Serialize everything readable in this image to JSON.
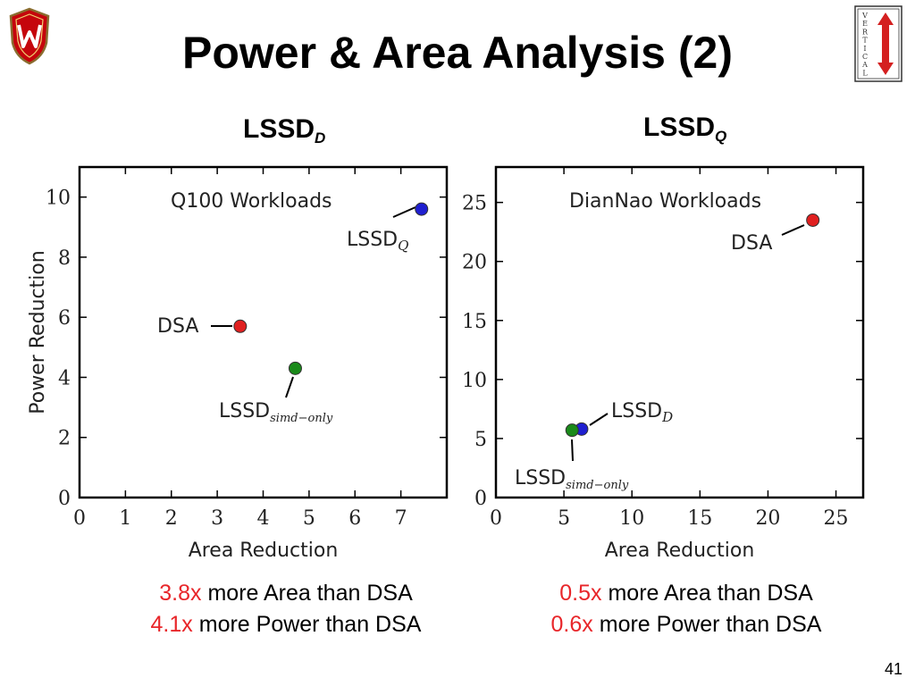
{
  "slide": {
    "title": "Power & Area Analysis (2)",
    "page_number": "41",
    "left_heading": {
      "main": "LSSD",
      "subscript": "D"
    },
    "right_heading": {
      "main": "LSSD",
      "subscript": "Q"
    },
    "left_comparison": [
      {
        "value": "3.8x",
        "text": " more Area than DSA"
      },
      {
        "value": "4.1x",
        "text": " more Power than DSA"
      }
    ],
    "right_comparison": [
      {
        "value": "0.5x",
        "text": " more Area than DSA"
      },
      {
        "value": "0.6x",
        "text": " more Power than DSA"
      }
    ],
    "logos": {
      "left": "uw-crest-logo",
      "right_letters": [
        "V",
        "E",
        "R",
        "T",
        "I",
        "C",
        "A",
        "L"
      ]
    },
    "accent_color": "#e8262a"
  },
  "chart_data": [
    {
      "type": "scatter",
      "title": "Q100 Workloads",
      "xlabel": "Area Reduction",
      "ylabel": "Power Reduction",
      "xlim": [
        0,
        8
      ],
      "ylim": [
        0,
        11
      ],
      "xticks": [
        0,
        1,
        2,
        3,
        4,
        5,
        6,
        7
      ],
      "yticks": [
        0,
        2,
        4,
        6,
        8,
        10
      ],
      "points": [
        {
          "label": "LSSD",
          "sub": "Q",
          "x": 7.45,
          "y": 9.6,
          "color": "#1f1fd0"
        },
        {
          "label": "DSA",
          "sub": "",
          "x": 3.5,
          "y": 5.7,
          "color": "#e02020"
        },
        {
          "label": "LSSD",
          "sub": "simd−only",
          "x": 4.7,
          "y": 4.3,
          "color": "#1a8a1a"
        }
      ]
    },
    {
      "type": "scatter",
      "title": "DianNao Workloads",
      "xlabel": "Area Reduction",
      "ylabel": "",
      "xlim": [
        0,
        27
      ],
      "ylim": [
        0,
        28
      ],
      "xticks": [
        0,
        5,
        10,
        15,
        20,
        25
      ],
      "yticks": [
        0,
        5,
        10,
        15,
        20,
        25
      ],
      "points": [
        {
          "label": "DSA",
          "sub": "",
          "x": 23.3,
          "y": 23.5,
          "color": "#e02020"
        },
        {
          "label": "LSSD",
          "sub": "D",
          "x": 6.3,
          "y": 5.8,
          "color": "#1f1fd0"
        },
        {
          "label": "LSSD",
          "sub": "simd−only",
          "x": 5.6,
          "y": 5.7,
          "color": "#1a8a1a"
        }
      ]
    }
  ]
}
